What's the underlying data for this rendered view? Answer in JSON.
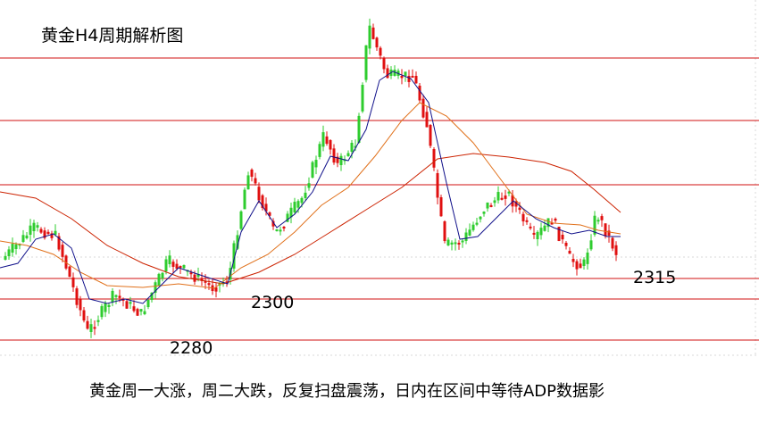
{
  "header": {
    "title": "黄金H4周期解析图"
  },
  "levels": [
    2315,
    2300,
    2280
  ],
  "caption": "黄金周一大涨，周二大跌，反复扫盘震荡，日内在区间中等待ADP数据影"
}
